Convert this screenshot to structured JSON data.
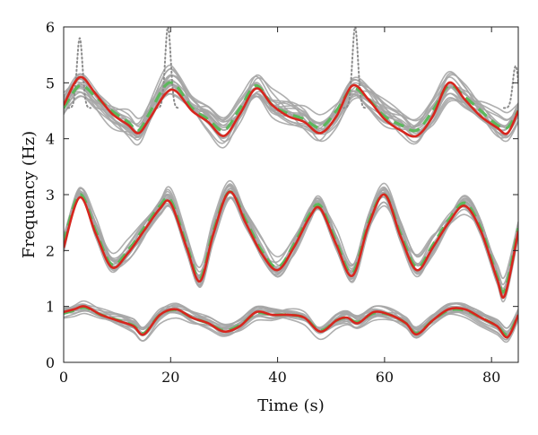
{
  "chart_data": {
    "type": "line",
    "title": "",
    "xlabel": "Time (s)",
    "ylabel": "Frequency (Hz)",
    "xlim": [
      0,
      85
    ],
    "ylim": [
      0,
      6
    ],
    "xticks": [
      0,
      20,
      40,
      60,
      80
    ],
    "yticks": [
      0,
      1,
      2,
      3,
      4,
      5,
      6
    ],
    "grid": false,
    "legend": "none",
    "colors": {
      "ensemble": "#a6a6a6",
      "solid": "#d7261e",
      "dashed": "#5cb85c",
      "spike": "#8c8c8c"
    },
    "series": [
      {
        "style": "solid",
        "x": [
          0,
          3,
          6,
          9,
          12,
          14,
          16,
          19,
          21,
          24,
          27,
          30,
          33,
          36,
          39,
          42,
          45,
          48,
          51,
          54,
          57,
          60,
          63,
          66,
          69,
          72,
          75,
          78,
          81,
          83,
          85
        ],
        "y": [
          4.6,
          5.1,
          4.8,
          4.45,
          4.25,
          4.1,
          4.35,
          4.8,
          4.85,
          4.5,
          4.3,
          4.05,
          4.45,
          4.9,
          4.6,
          4.4,
          4.3,
          4.1,
          4.4,
          4.95,
          4.7,
          4.35,
          4.15,
          4.05,
          4.4,
          5.0,
          4.7,
          4.4,
          4.2,
          4.1,
          4.5
        ]
      },
      {
        "style": "dashed",
        "x": [
          0,
          3,
          6,
          9,
          12,
          14,
          16,
          19,
          21,
          24,
          27,
          30,
          33,
          36,
          39,
          42,
          45,
          48,
          51,
          54,
          57,
          60,
          63,
          66,
          69,
          72,
          75,
          78,
          81,
          83,
          85
        ],
        "y": [
          4.55,
          4.95,
          4.75,
          4.5,
          4.3,
          4.15,
          4.45,
          4.95,
          4.95,
          4.55,
          4.35,
          4.15,
          4.55,
          4.95,
          4.6,
          4.45,
          4.35,
          4.2,
          4.5,
          4.9,
          4.7,
          4.4,
          4.25,
          4.15,
          4.5,
          4.95,
          4.75,
          4.5,
          4.25,
          4.2,
          4.5
        ]
      },
      {
        "style": "solid",
        "x": [
          0,
          3,
          6,
          9,
          12,
          15,
          18,
          20,
          23,
          25.5,
          28,
          31,
          34,
          37,
          40,
          43,
          46,
          48,
          51,
          54,
          57,
          60,
          63,
          66,
          69,
          72,
          75,
          78,
          81,
          82.5,
          85
        ],
        "y": [
          2.05,
          2.95,
          2.3,
          1.7,
          1.95,
          2.35,
          2.75,
          2.85,
          2.05,
          1.45,
          2.3,
          3.05,
          2.5,
          1.95,
          1.65,
          2.05,
          2.6,
          2.75,
          2.1,
          1.55,
          2.45,
          3.0,
          2.25,
          1.65,
          2.05,
          2.5,
          2.8,
          2.35,
          1.5,
          1.2,
          2.35
        ]
      },
      {
        "style": "dashed",
        "x": [
          0,
          3,
          6,
          9,
          12,
          15,
          18,
          20,
          23,
          25.5,
          28,
          31,
          34,
          37,
          40,
          43,
          46,
          48,
          51,
          54,
          57,
          60,
          63,
          66,
          69,
          72,
          75,
          78,
          81,
          82.5,
          85
        ],
        "y": [
          2.15,
          3.0,
          2.35,
          1.75,
          2.0,
          2.4,
          2.8,
          2.9,
          2.1,
          1.5,
          2.35,
          3.05,
          2.55,
          2.0,
          1.7,
          2.1,
          2.65,
          2.8,
          2.15,
          1.6,
          2.5,
          3.0,
          2.3,
          1.7,
          2.1,
          2.55,
          2.85,
          2.4,
          1.55,
          1.3,
          2.4
        ]
      },
      {
        "style": "solid",
        "x": [
          0,
          2,
          4,
          7,
          10,
          13,
          15,
          18,
          21,
          24,
          27,
          30,
          33,
          36,
          39,
          42,
          45,
          48,
          51,
          53,
          55,
          58,
          61,
          64,
          66,
          69,
          72,
          75,
          78,
          81,
          83,
          85
        ],
        "y": [
          0.9,
          0.95,
          1.0,
          0.85,
          0.75,
          0.65,
          0.5,
          0.85,
          0.95,
          0.8,
          0.7,
          0.55,
          0.65,
          0.9,
          0.85,
          0.85,
          0.8,
          0.55,
          0.75,
          0.8,
          0.7,
          0.9,
          0.85,
          0.7,
          0.5,
          0.75,
          0.95,
          0.95,
          0.8,
          0.65,
          0.45,
          0.85
        ]
      },
      {
        "style": "dashed",
        "x": [
          0,
          2,
          4,
          7,
          10,
          13,
          15,
          18,
          21,
          24,
          27,
          30,
          33,
          36,
          39,
          42,
          45,
          48,
          51,
          53,
          55,
          58,
          61,
          64,
          66,
          69,
          72,
          75,
          78,
          81,
          83,
          85
        ],
        "y": [
          0.88,
          0.93,
          0.98,
          0.85,
          0.76,
          0.66,
          0.52,
          0.85,
          0.94,
          0.8,
          0.7,
          0.57,
          0.67,
          0.88,
          0.85,
          0.85,
          0.8,
          0.57,
          0.75,
          0.8,
          0.72,
          0.88,
          0.85,
          0.7,
          0.52,
          0.75,
          0.93,
          0.93,
          0.8,
          0.65,
          0.5,
          0.85
        ]
      }
    ],
    "spikes": [
      {
        "x": 3,
        "y": 5.8
      },
      {
        "x": 19.5,
        "y": 6.0
      },
      {
        "x": 54.5,
        "y": 6.0
      },
      {
        "x": 84.5,
        "y": 5.3
      }
    ]
  }
}
